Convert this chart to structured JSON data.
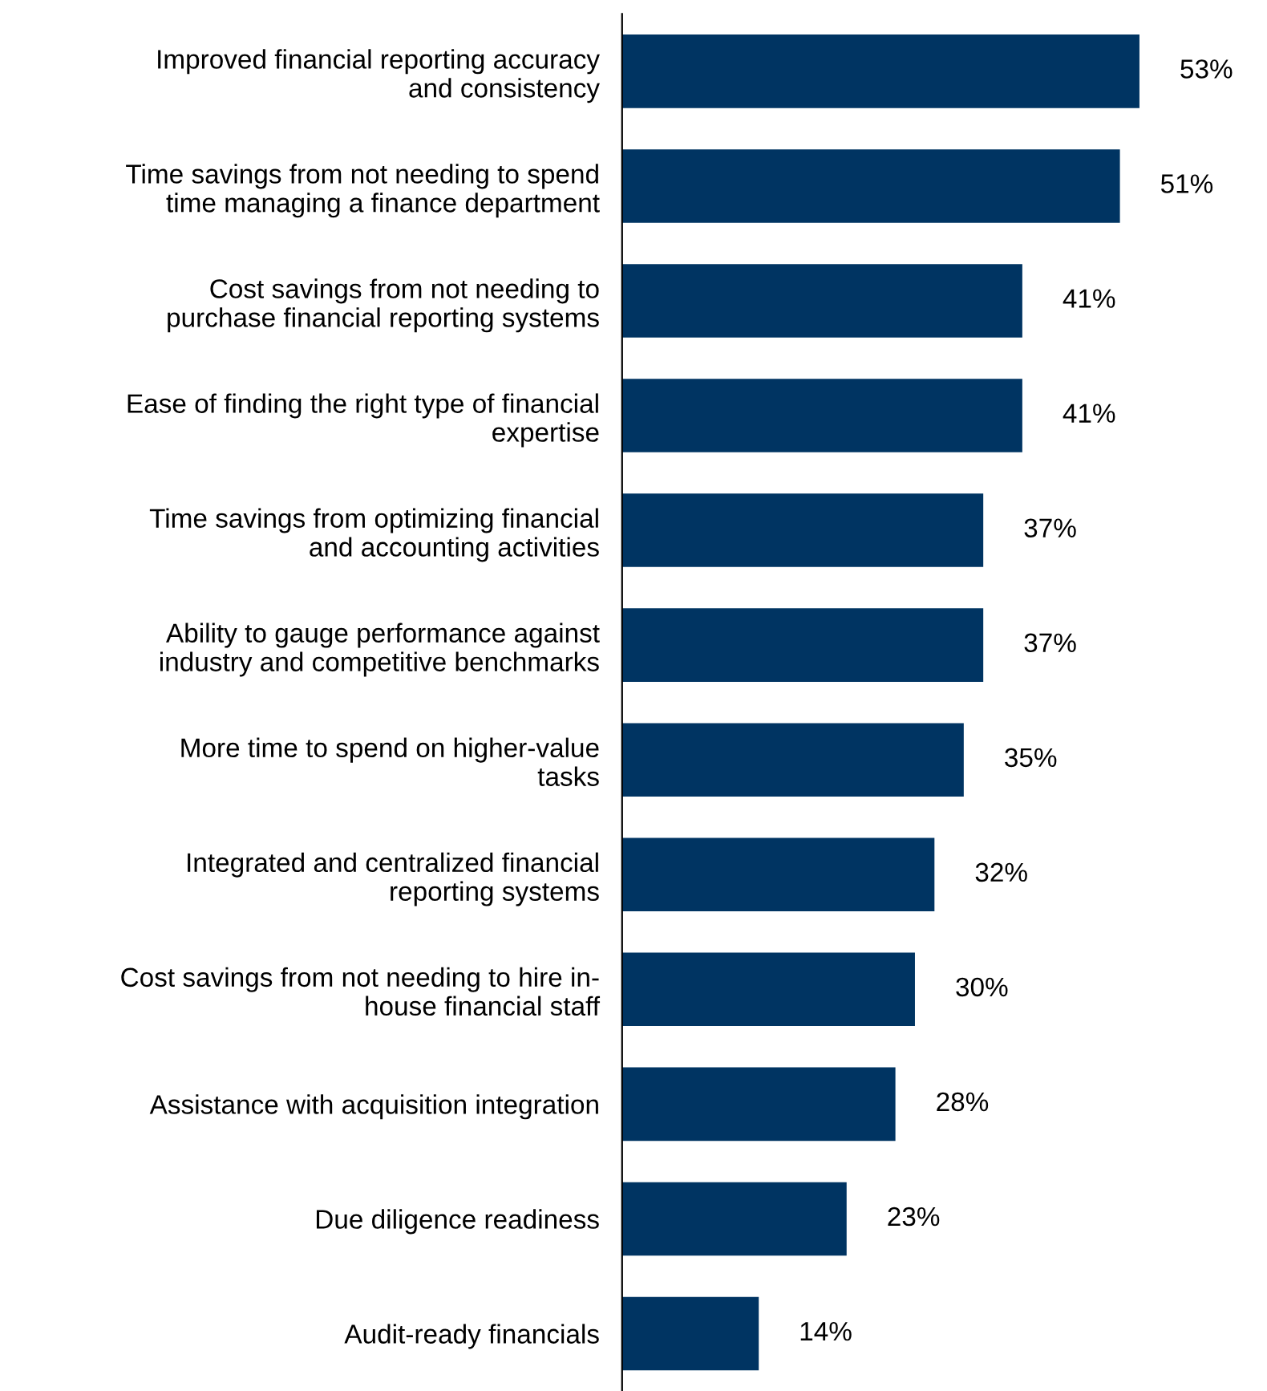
{
  "chart_data": {
    "type": "bar",
    "orientation": "horizontal",
    "categories": [
      "Improved financial reporting accuracy\nand consistency",
      "Time savings from not needing to spend\ntime managing a finance department",
      "Cost savings from not needing to\npurchase financial reporting systems",
      "Ease of finding the right type of financial\nexpertise",
      "Time savings from optimizing financial\nand accounting activities",
      "Ability to gauge performance against\nindustry and competitive benchmarks",
      "More time to spend on higher-value\ntasks",
      "Integrated and centralized financial\nreporting systems",
      "Cost savings from not needing to hire in-\nhouse financial staff",
      "Assistance with acquisition integration",
      "Due diligence readiness",
      "Audit-ready financials"
    ],
    "values": [
      53,
      51,
      41,
      41,
      37,
      37,
      35,
      32,
      30,
      28,
      23,
      14
    ],
    "value_labels": [
      "53%",
      "51%",
      "41%",
      "41%",
      "37%",
      "37%",
      "35%",
      "32%",
      "30%",
      "28%",
      "23%",
      "14%"
    ],
    "color": "#003462",
    "grid": false,
    "legend": false
  }
}
